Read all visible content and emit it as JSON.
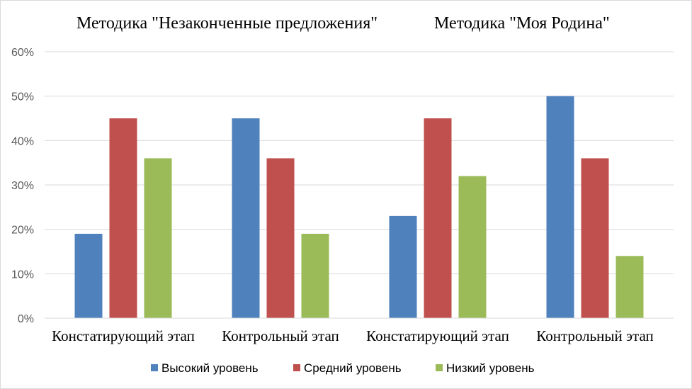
{
  "chart_data": {
    "type": "bar",
    "titles": [
      "Методика \"Незаконченные предложения\"",
      "Методика \"Моя Родина\""
    ],
    "categories": [
      "Констатирующий этап",
      "Контрольный этап",
      "Констатирующий этап",
      "Контрольный этап"
    ],
    "series": [
      {
        "name": "Высокий уровень",
        "color": "#4f81bd",
        "values": [
          0.19,
          0.45,
          0.23,
          0.5
        ]
      },
      {
        "name": "Средний уровень",
        "color": "#c0504d",
        "values": [
          0.45,
          0.36,
          0.45,
          0.36
        ]
      },
      {
        "name": "Низкий уровень",
        "color": "#9bbb59",
        "values": [
          0.36,
          0.19,
          0.32,
          0.14
        ]
      }
    ],
    "ylim": [
      0,
      0.6
    ],
    "yticks": [
      "0%",
      "10%",
      "20%",
      "30%",
      "40%",
      "50%",
      "60%"
    ],
    "grid": true,
    "legend_position": "bottom"
  }
}
